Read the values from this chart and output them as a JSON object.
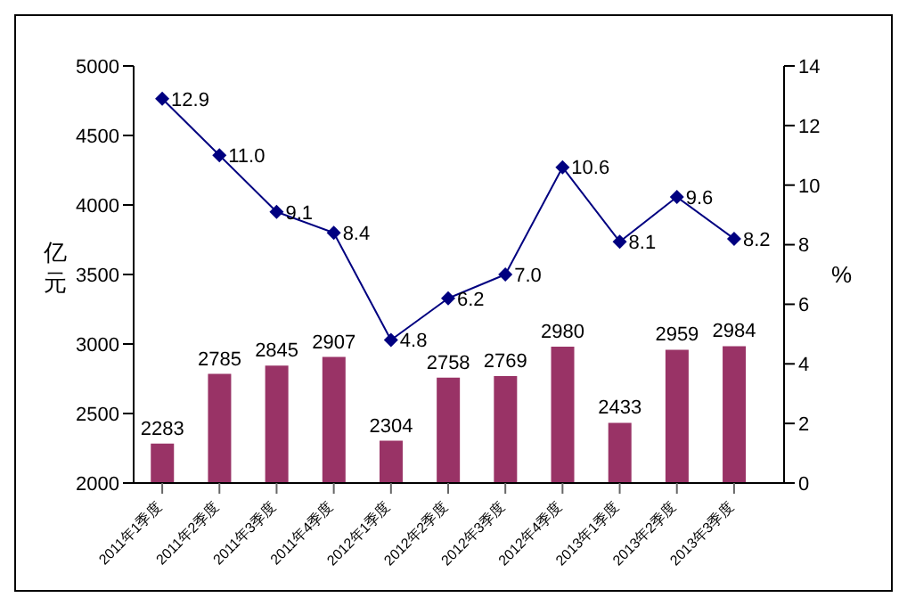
{
  "chart_data": {
    "type": "bar",
    "categories": [
      "2011年1季度",
      "2011年2季度",
      "2011年3季度",
      "2011年4季度",
      "2012年1季度",
      "2012年2季度",
      "2012年3季度",
      "2012年4季度",
      "2013年1季度",
      "2013年2季度",
      "2013年3季度"
    ],
    "series": [
      {
        "color": "#993366",
        "values": [
          2283,
          2785,
          2845,
          2907,
          2304,
          2758,
          2769,
          2980,
          2433,
          2959,
          2984
        ]
      },
      {
        "type": "line",
        "axis": "y2",
        "color": "#000080",
        "marker": "diamond",
        "values": [
          12.9,
          11.0,
          9.1,
          8.4,
          4.8,
          6.2,
          7.0,
          10.6,
          8.1,
          9.6,
          8.2
        ],
        "value_labels": [
          "12.9",
          "11.0",
          "9.1",
          "8.4",
          "4.8",
          "6.2",
          "7.0",
          "10.6",
          "8.1",
          "9.6",
          "8.2"
        ]
      }
    ],
    "ylabel": "亿元",
    "y2label": "%",
    "ylim": [
      2000,
      5000
    ],
    "yticks": [
      2000,
      2500,
      3000,
      3500,
      4000,
      4500,
      5000
    ],
    "y2lim": [
      0,
      14
    ],
    "y2ticks": [
      0,
      2,
      4,
      6,
      8,
      10,
      12,
      14
    ],
    "data_labels": true
  }
}
